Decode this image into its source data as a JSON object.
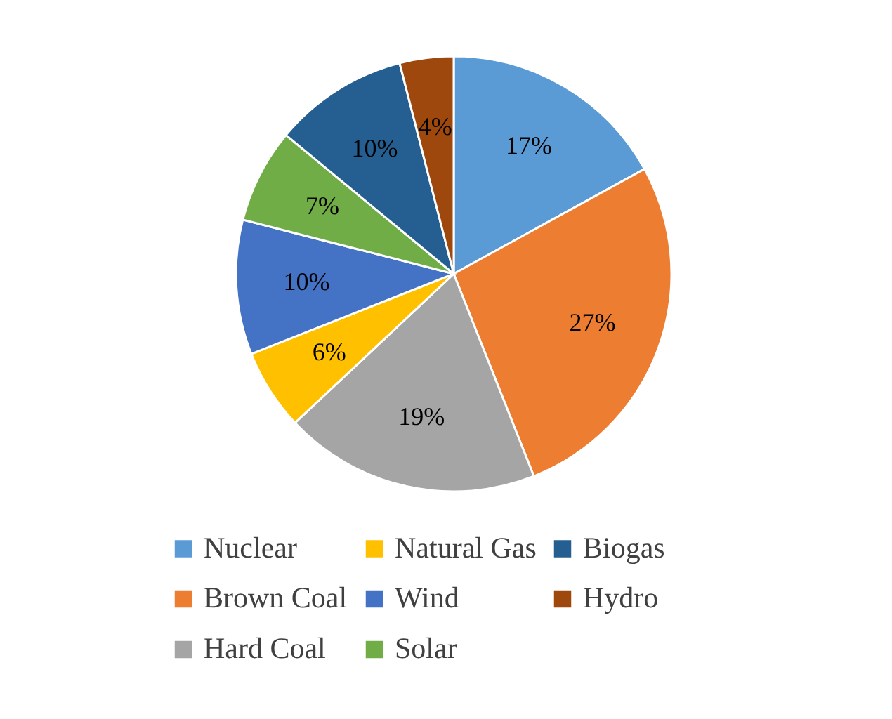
{
  "chart_data": {
    "type": "pie",
    "categories": [
      "Nuclear",
      "Brown Coal",
      "Hard Coal",
      "Natural Gas",
      "Wind",
      "Solar",
      "Biogas",
      "Hydro"
    ],
    "values": [
      17,
      27,
      19,
      6,
      10,
      7,
      10,
      4
    ],
    "colors": [
      "#5b9bd5",
      "#ed7d31",
      "#a5a5a5",
      "#ffc000",
      "#4472c4",
      "#70ad47",
      "#255e91",
      "#9e480e"
    ],
    "value_labels": [
      "17%",
      "27%",
      "19%",
      "6%",
      "10%",
      "7%",
      "10%",
      "4%"
    ],
    "legend": "bottom"
  }
}
